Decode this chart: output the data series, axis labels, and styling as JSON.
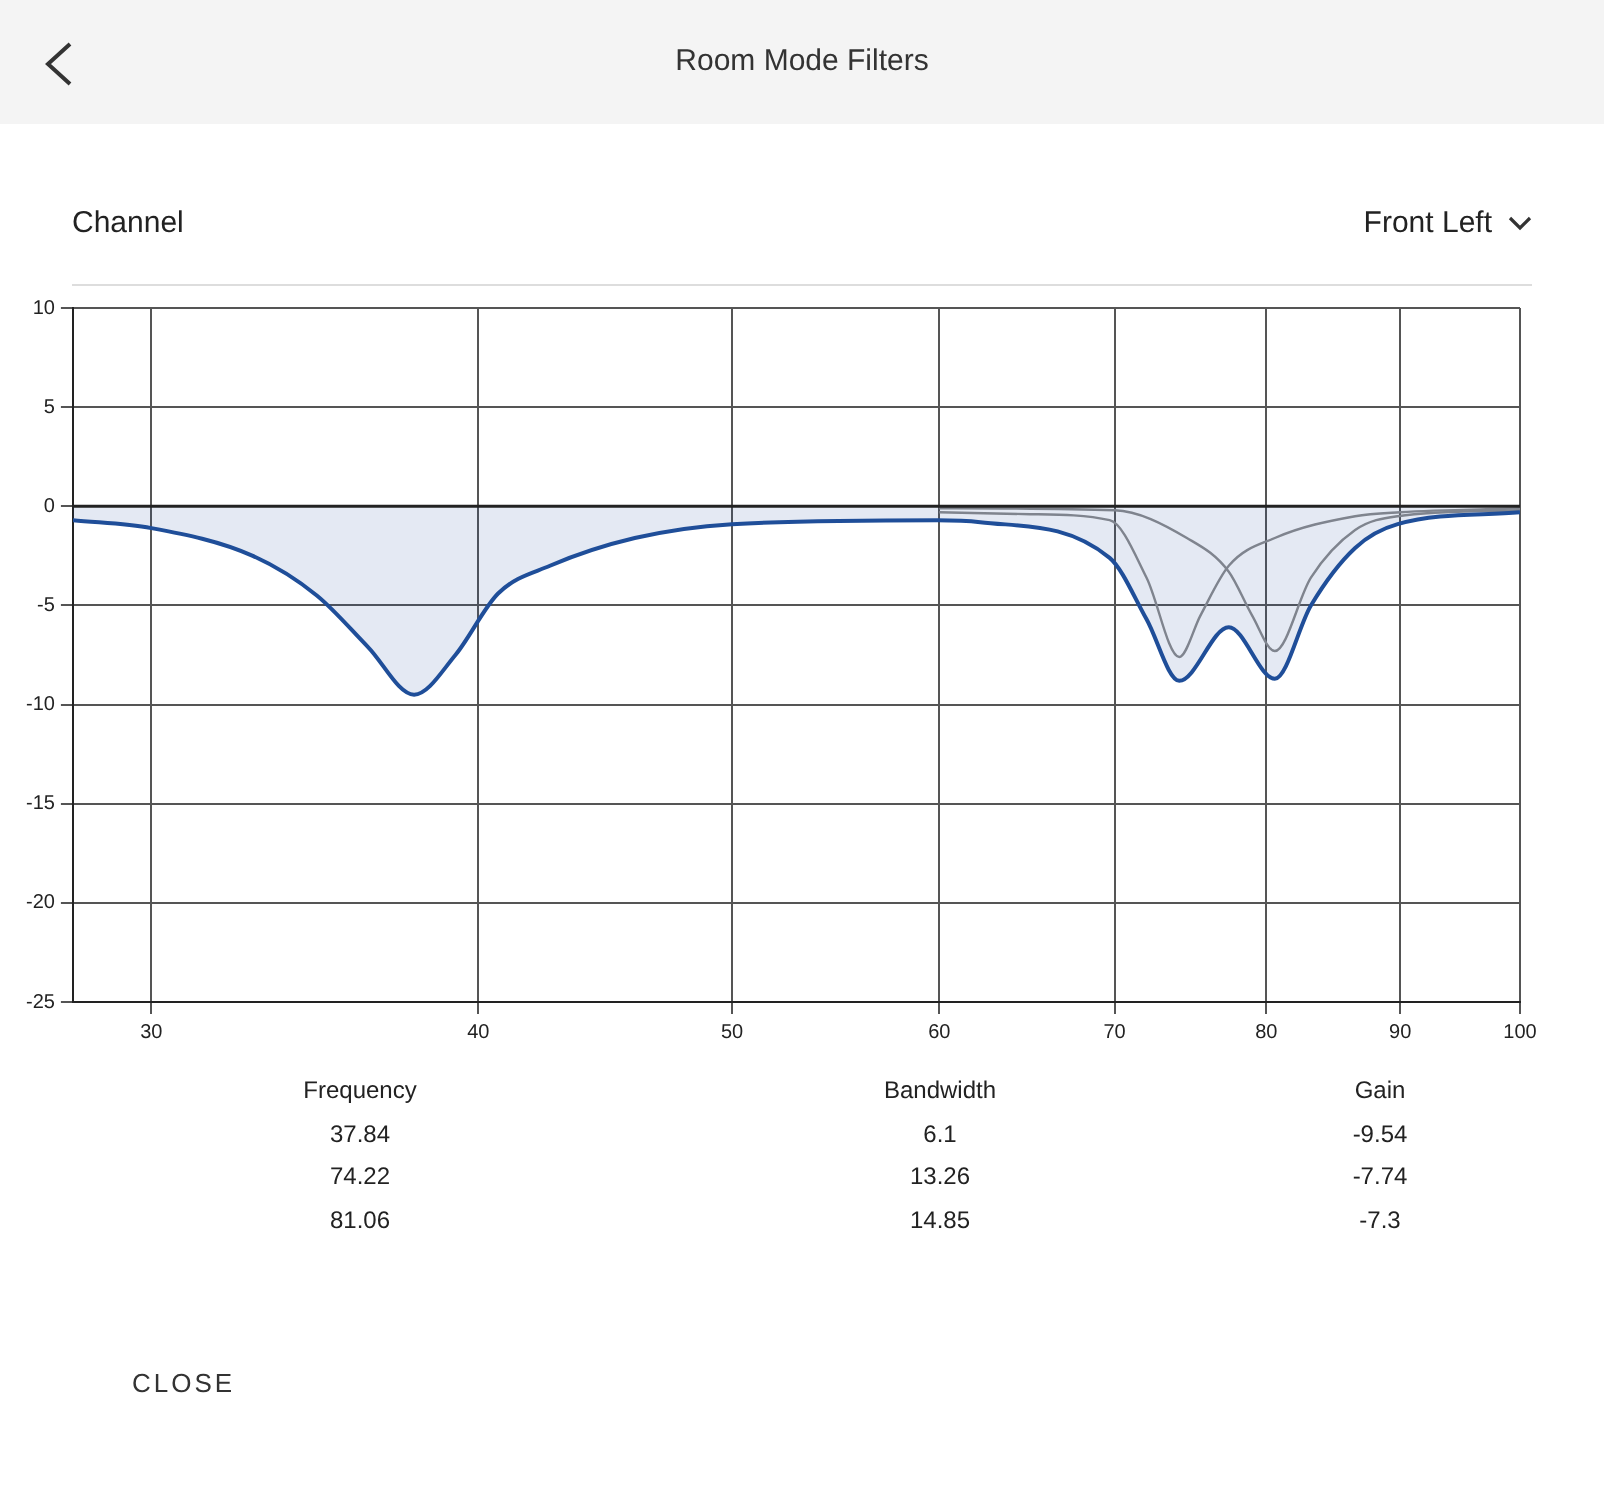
{
  "chart_data": {
    "type": "area",
    "title": "Room Mode Filters",
    "log": "x",
    "grid": true,
    "legend": false,
    "xlim": [
      28,
      100
    ],
    "xticks": [
      30,
      40,
      50,
      60,
      70,
      80,
      90,
      100
    ],
    "ylim": [
      -25,
      10
    ],
    "yticks": [
      -25,
      -20,
      -15,
      -10,
      -5,
      0,
      5,
      10
    ],
    "annotations": [
      "Channel",
      "Front Left",
      "Frequency",
      "Bandwidth",
      "Gain",
      "37.84",
      "6.1",
      "-9.54",
      "74.22",
      "13.26",
      "-7.74",
      "81.06",
      "14.85",
      "-7.3",
      "CLOSE"
    ],
    "series": [
      {
        "type": "line",
        "color": "#8c8c8c",
        "x": [
          60,
          65,
          69.7,
          72,
          74.1,
          75.5,
          77.4,
          80.6,
          86.5,
          90,
          100
        ],
        "values": [
          -0.3,
          -0.4,
          -0.7,
          -3.6,
          -7.6,
          -5.5,
          -3.0,
          -1.6,
          -0.5,
          -0.3,
          -0.1
        ]
      },
      {
        "type": "line",
        "color": "#8c8c8c",
        "x": [
          60,
          70,
          74.6,
          77.4,
          79,
          80.6,
          83.2,
          86.5,
          89.8,
          100
        ],
        "values": [
          -0.1,
          -0.2,
          -1.6,
          -3.3,
          -5.5,
          -7.3,
          -3.6,
          -1.2,
          -0.5,
          -0.2
        ]
      },
      {
        "color": "#1f4e99",
        "x": [
          28,
          30,
          32.8,
          34.7,
          36.3,
          37.8,
          39.2,
          40.7,
          42.6,
          45.9,
          50,
          59.9,
          62.2,
          69.7,
          72,
          74.1,
          77.4,
          80.6,
          83.2,
          86.5,
          89.8,
          100
        ],
        "values": [
          -0.7,
          -1.1,
          -2.5,
          -4.5,
          -7.1,
          -9.5,
          -7.5,
          -4.4,
          -3.0,
          -1.6,
          -0.9,
          -0.7,
          -0.8,
          -2.6,
          -5.7,
          -8.8,
          -6.1,
          -8.7,
          -5.0,
          -2.1,
          -0.9,
          -0.3
        ]
      }
    ]
  }
}
